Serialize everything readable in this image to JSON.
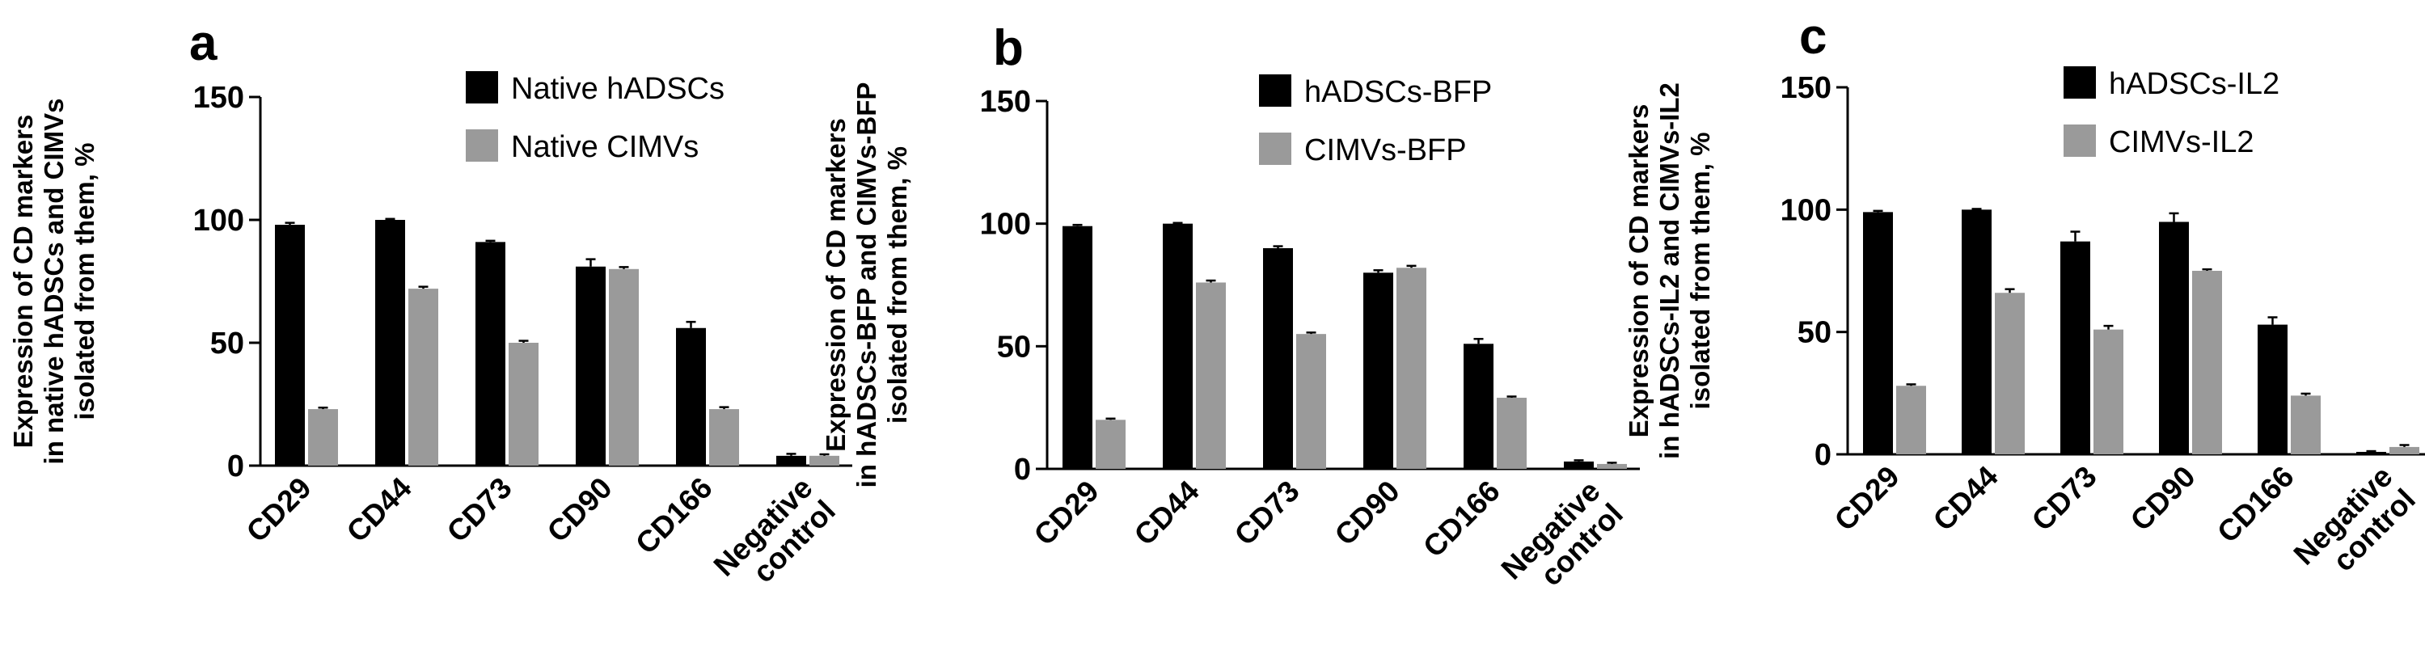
{
  "colors": {
    "series_primary": "#000000",
    "series_secondary": "#9a9a9a",
    "axis": "#000000"
  },
  "chart_data": [
    {
      "type": "bar",
      "panel": "a",
      "ylabel_lines": [
        "Expression of CD markers",
        "in native hADSCs and CIMVs",
        "isolated from them, %"
      ],
      "categories": [
        "CD29",
        "CD44",
        "CD73",
        "CD90",
        "CD166",
        "Negative control"
      ],
      "category_label_lines": [
        [
          "CD29"
        ],
        [
          "CD44"
        ],
        [
          "CD73"
        ],
        [
          "CD90"
        ],
        [
          "CD166"
        ],
        [
          "Negative",
          "control"
        ]
      ],
      "ylim": [
        0,
        150
      ],
      "yticks": [
        "0",
        "50",
        "100",
        "150"
      ],
      "legend_position": "top-right",
      "grid": false,
      "series": [
        {
          "name": "Native hADSCs",
          "values": [
            98,
            100,
            91,
            81,
            56,
            4
          ],
          "errors": [
            0.8,
            0.4,
            0.5,
            3,
            2.5,
            0.8
          ]
        },
        {
          "name": "Native CIMVs",
          "values": [
            23,
            72,
            50,
            80,
            23,
            4
          ],
          "errors": [
            0.6,
            0.8,
            0.8,
            0.8,
            0.8,
            0.6
          ]
        }
      ]
    },
    {
      "type": "bar",
      "panel": "b",
      "ylabel_lines": [
        "Expression of CD markers",
        "in hADSCs-BFP and CIMVs-BFP",
        "isolated from them, %"
      ],
      "categories": [
        "CD29",
        "CD44",
        "CD73",
        "CD90",
        "CD166",
        "Negative control"
      ],
      "category_label_lines": [
        [
          "CD29"
        ],
        [
          "CD44"
        ],
        [
          "CD73"
        ],
        [
          "CD90"
        ],
        [
          "CD166"
        ],
        [
          "Negative",
          "control"
        ]
      ],
      "ylim": [
        0,
        150
      ],
      "yticks": [
        "0",
        "50",
        "100",
        "150"
      ],
      "legend_position": "top-right",
      "grid": false,
      "series": [
        {
          "name": "hADSCs-BFP",
          "values": [
            99,
            100,
            90,
            80,
            51,
            3
          ],
          "errors": [
            0.5,
            0.3,
            0.8,
            1,
            2,
            0.5
          ]
        },
        {
          "name": "CIMVs-BFP",
          "values": [
            20,
            76,
            55,
            82,
            29,
            2
          ],
          "errors": [
            0.5,
            0.8,
            0.6,
            0.8,
            0.5,
            0.5
          ]
        }
      ]
    },
    {
      "type": "bar",
      "panel": "c",
      "ylabel_lines": [
        "Expression of CD markers",
        "in hADSCs-IL2 and CIMVs-IL2",
        "isolated from them, %"
      ],
      "categories": [
        "CD29",
        "CD44",
        "CD73",
        "CD90",
        "CD166",
        "Negative control"
      ],
      "category_label_lines": [
        [
          "CD29"
        ],
        [
          "CD44"
        ],
        [
          "CD73"
        ],
        [
          "CD90"
        ],
        [
          "CD166"
        ],
        [
          "Negative",
          "control"
        ]
      ],
      "ylim": [
        0,
        150
      ],
      "yticks": [
        "0",
        "50",
        "100",
        "150"
      ],
      "legend_position": "top-right",
      "grid": false,
      "series": [
        {
          "name": "hADSCs-IL2",
          "values": [
            99,
            100,
            87,
            95,
            53,
            1
          ],
          "errors": [
            0.5,
            0.3,
            4,
            3.5,
            3,
            0.3
          ]
        },
        {
          "name": "CIMVs-IL2",
          "values": [
            28,
            66,
            51,
            75,
            24,
            3
          ],
          "errors": [
            0.6,
            1.5,
            1.5,
            0.6,
            0.8,
            0.8
          ]
        }
      ]
    }
  ]
}
